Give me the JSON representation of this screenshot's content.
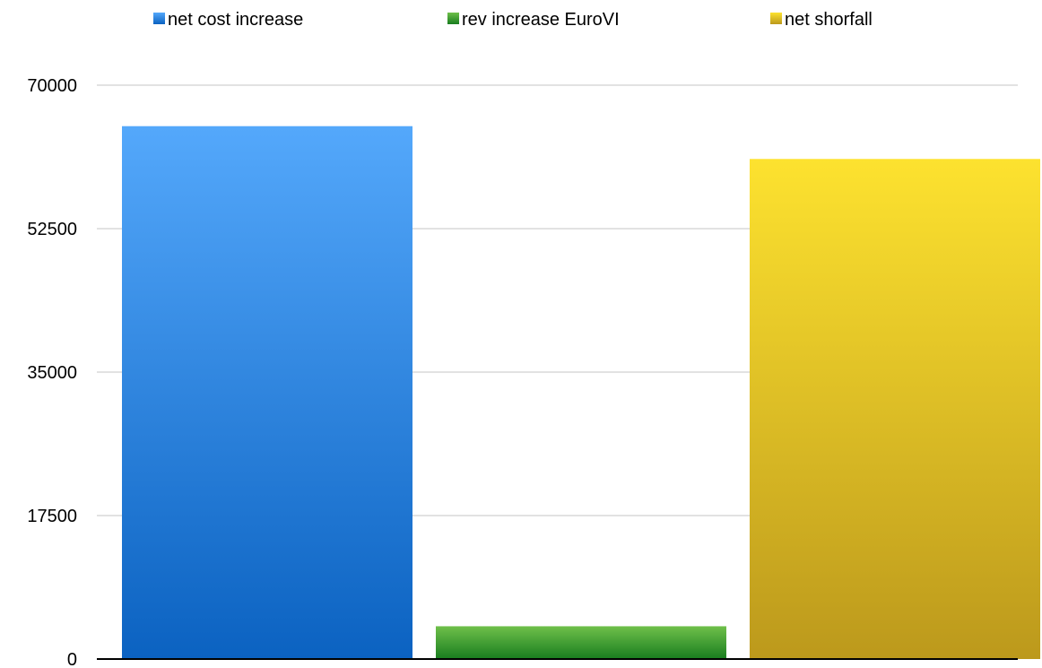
{
  "chart_data": {
    "type": "bar",
    "title": "",
    "xlabel": "",
    "ylabel": "",
    "ylim": [
      0,
      70000
    ],
    "yticks": [
      0,
      17500,
      35000,
      52500,
      70000
    ],
    "grid": true,
    "legend_position": "top",
    "categories": [
      ""
    ],
    "series": [
      {
        "name": "net cost increase",
        "values": [
          65000
        ],
        "color_top": "#54a8fb",
        "color_bottom": "#0b62c1"
      },
      {
        "name": "rev increase EuroVI",
        "values": [
          4000
        ],
        "color_top": "#6fc04a",
        "color_bottom": "#187d1f"
      },
      {
        "name": "net shorfall",
        "values": [
          61000
        ],
        "color_top": "#fde22f",
        "color_bottom": "#bc991c"
      }
    ]
  }
}
